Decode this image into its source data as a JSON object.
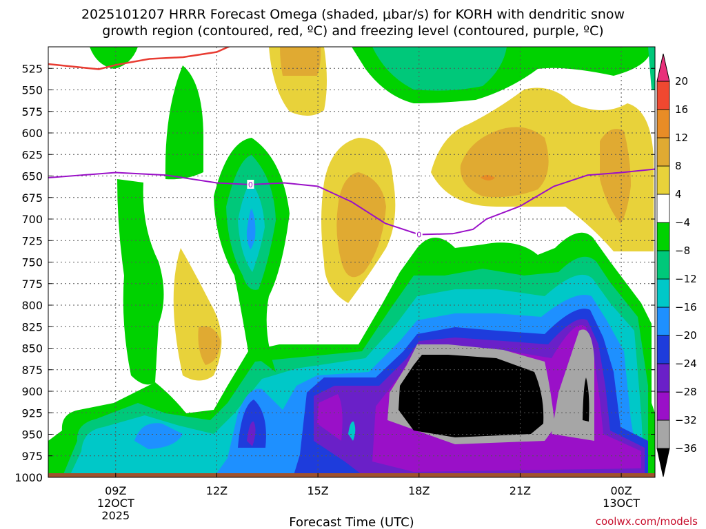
{
  "title": {
    "line1": "2025101207 HRRR Forecast Omega (shaded, μbar/s) for KORH with dendritic snow",
    "line2": "growth region (contoured, red, ºC) and freezing level (contoured, purple, ºC)"
  },
  "credit": "coolwx.com/models",
  "chart_data": {
    "type": "heatmap",
    "title": "2025101207 HRRR Forecast Omega (shaded, μbar/s) for KORH with dendritic snow growth region (contoured, red, ºC) and freezing level (contoured, purple, ºC)",
    "xlabel": "Forecast Time (UTC)",
    "ylabel": "",
    "xlim": [
      7,
      25
    ],
    "ylim": [
      1000,
      500
    ],
    "x_ticks": [
      {
        "value": 9,
        "label": "09Z",
        "sub1": "12OCT",
        "sub2": "2025"
      },
      {
        "value": 12,
        "label": "12Z",
        "sub1": "",
        "sub2": ""
      },
      {
        "value": 15,
        "label": "15Z",
        "sub1": "",
        "sub2": ""
      },
      {
        "value": 18,
        "label": "18Z",
        "sub1": "",
        "sub2": ""
      },
      {
        "value": 21,
        "label": "21Z",
        "sub1": "",
        "sub2": ""
      },
      {
        "value": 24,
        "label": "00Z",
        "sub1": "13OCT",
        "sub2": ""
      }
    ],
    "y_ticks": [
      525,
      550,
      575,
      600,
      625,
      650,
      675,
      700,
      725,
      750,
      775,
      800,
      825,
      850,
      875,
      900,
      925,
      950,
      975,
      1000
    ],
    "colorbar": {
      "levels": [
        -36,
        -32,
        -28,
        -24,
        -20,
        -16,
        -12,
        -8,
        -4,
        4,
        8,
        12,
        16,
        20
      ],
      "labels": [
        "20",
        "16",
        "12",
        "8",
        "4",
        "−4",
        "−8",
        "−12",
        "−16",
        "−20",
        "−24",
        "−28",
        "−32",
        "−36"
      ],
      "colors": [
        "#000000",
        "#a6a6a6",
        "#9a10c8",
        "#6a20c8",
        "#1e3cdc",
        "#1e90ff",
        "#00c8c8",
        "#00c87a",
        "#00d200",
        "#ffffff",
        "#e8d23a",
        "#e0aa32",
        "#e88c26",
        "#f04830",
        "#e8307a"
      ],
      "colors_note": "below -36 black, then each band upward, above 20 pink"
    },
    "freezing_level": {
      "color": "#9a10c8",
      "label": "0",
      "x": [
        7.0,
        9.0,
        10.5,
        12.0,
        13.0,
        14.0,
        15.0,
        16.0,
        17.0,
        18.0,
        19.0,
        19.6,
        20.0,
        21.0,
        22.0,
        23.0,
        24.0,
        25.0
      ],
      "p": [
        652,
        646,
        649,
        658,
        660,
        658,
        662,
        680,
        705,
        718,
        717,
        712,
        700,
        685,
        662,
        649,
        646,
        642
      ]
    },
    "dgz_contour": {
      "color": "#e83c32",
      "x": [
        7.0,
        8.0,
        8.5,
        9.0,
        10.0,
        11.0,
        12.0,
        12.4
      ],
      "p": [
        520,
        524,
        526,
        521,
        514,
        512,
        506,
        499
      ]
    }
  }
}
